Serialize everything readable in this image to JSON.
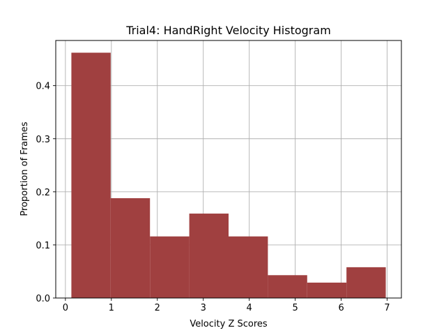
{
  "chart_data": {
    "type": "bar",
    "title": "Trial4: HandRight Velocity Histogram",
    "xlabel": "Velocity Z Scores",
    "ylabel": "Proportion of Frames",
    "bin_edges": [
      0.13,
      0.985,
      1.84,
      2.695,
      3.55,
      4.405,
      5.26,
      6.115,
      6.97
    ],
    "values": [
      0.462,
      0.188,
      0.116,
      0.159,
      0.116,
      0.043,
      0.029,
      0.058
    ],
    "xlim": [
      -0.21,
      7.31
    ],
    "ylim": [
      0,
      0.485
    ],
    "xticks": [
      0,
      1,
      2,
      3,
      4,
      5,
      6,
      7
    ],
    "xtick_labels": [
      "0",
      "1",
      "2",
      "3",
      "4",
      "5",
      "6",
      "7"
    ],
    "yticks": [
      0.0,
      0.1,
      0.2,
      0.3,
      0.4
    ],
    "ytick_labels": [
      "0.0",
      "0.1",
      "0.2",
      "0.3",
      "0.4"
    ],
    "grid": true,
    "bar_color": "#a04040"
  }
}
